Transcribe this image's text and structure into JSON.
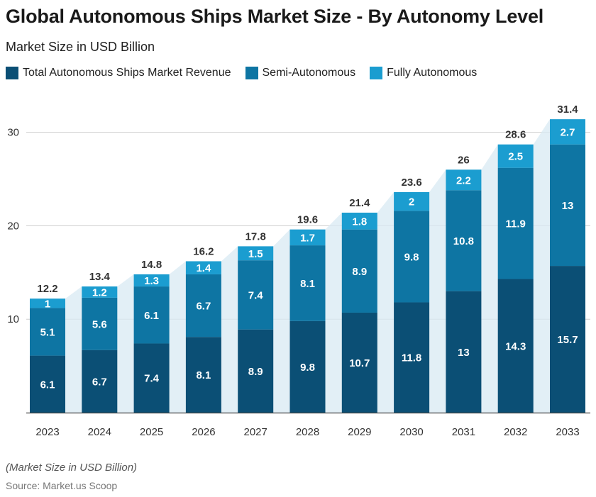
{
  "title": "Global Autonomous Ships Market Size - By Autonomy Level",
  "subtitle": "Market Size in USD Billion",
  "footnote": "(Market Size in USD Billion)",
  "source": "Source: Market.us Scoop",
  "colors": {
    "total": "#0b4f75",
    "semi": "#0e75a3",
    "fully": "#1b9dd0",
    "area": "#d8eaf3",
    "grid": "#cfcfcf"
  },
  "chart_data": {
    "type": "bar",
    "stacked": true,
    "categories": [
      "2023",
      "2024",
      "2025",
      "2026",
      "2027",
      "2028",
      "2029",
      "2030",
      "2031",
      "2032",
      "2033"
    ],
    "series": [
      {
        "name": "Total Autonomous Ships Market Revenue",
        "values": [
          6.1,
          6.7,
          7.4,
          8.1,
          8.9,
          9.8,
          10.7,
          11.8,
          13,
          14.3,
          15.7
        ]
      },
      {
        "name": "Semi-Autonomous",
        "values": [
          5.1,
          5.6,
          6.1,
          6.7,
          7.4,
          8.1,
          8.9,
          9.8,
          10.8,
          11.9,
          13
        ]
      },
      {
        "name": "Fully Autonomous",
        "values": [
          1,
          1.2,
          1.3,
          1.4,
          1.5,
          1.7,
          1.8,
          2,
          2.2,
          2.5,
          2.7
        ]
      }
    ],
    "totals": [
      "12.2",
      "13.4",
      "14.8",
      "16.2",
      "17.8",
      "19.6",
      "21.4",
      "23.6",
      "26",
      "28.6",
      "31.4"
    ],
    "yticks": [
      "10",
      "20",
      "30"
    ],
    "ylim": [
      0,
      34
    ],
    "grid": true,
    "legend_position": "top-left"
  }
}
